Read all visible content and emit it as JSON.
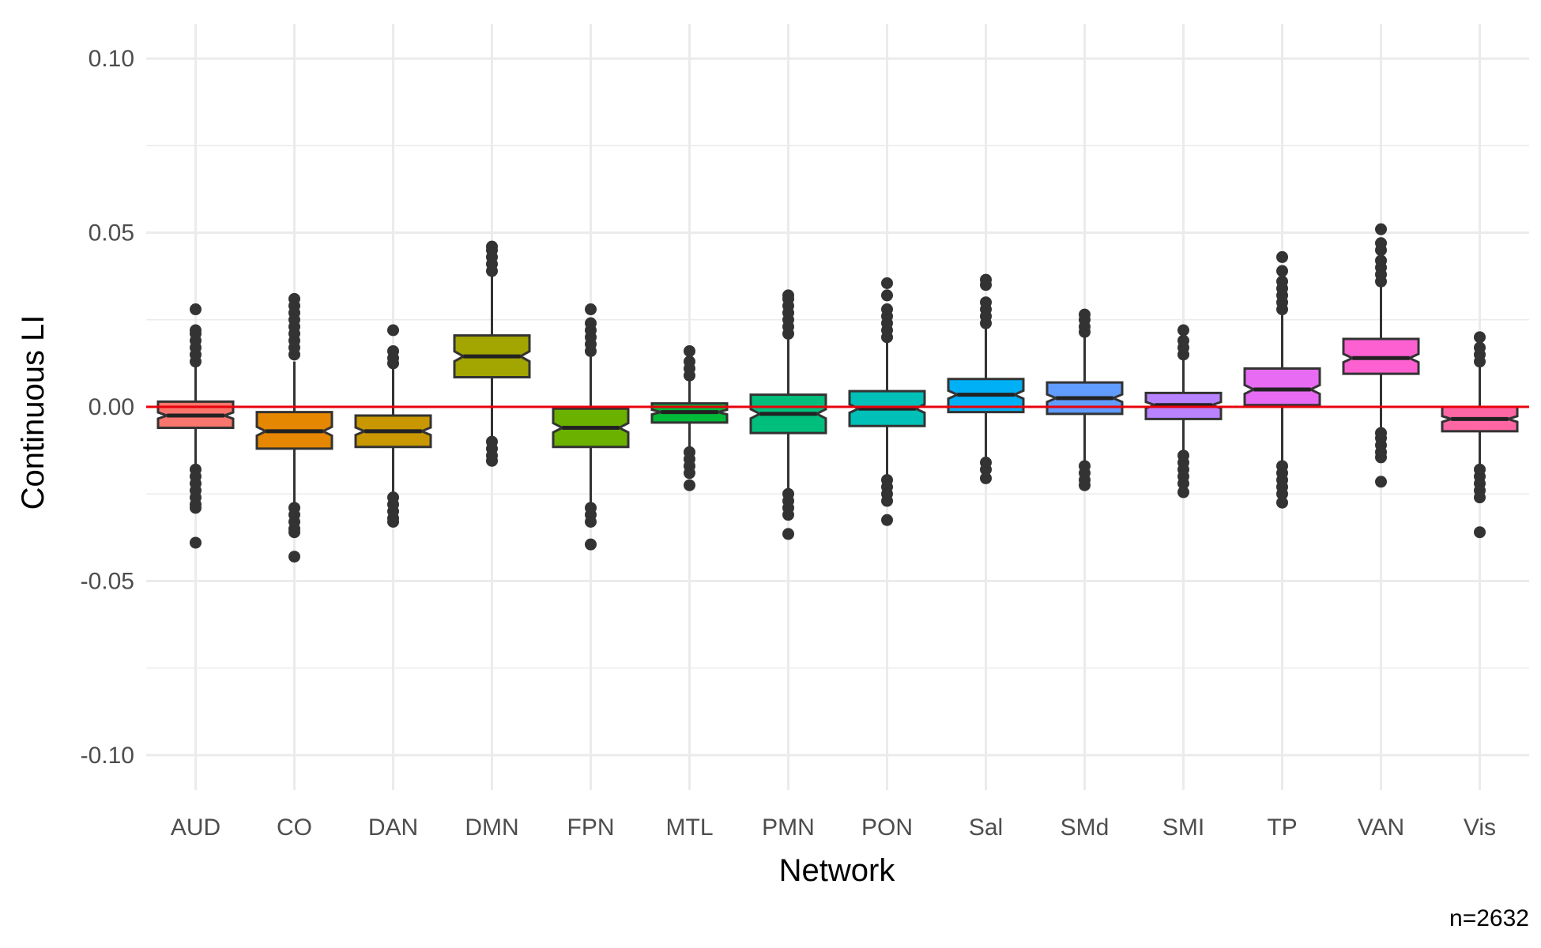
{
  "chart_data": {
    "type": "boxplot",
    "xlabel": "Network",
    "ylabel": "Continuous LI",
    "caption": "n=2632",
    "ylim": [
      -0.11,
      0.11
    ],
    "y_ticks": [
      {
        "value": 0.1,
        "label": "0.10"
      },
      {
        "value": 0.05,
        "label": "0.05"
      },
      {
        "value": 0.0,
        "label": "0.00"
      },
      {
        "value": -0.05,
        "label": "-0.05"
      },
      {
        "value": -0.1,
        "label": "-0.10"
      }
    ],
    "reference_line": {
      "y": 0.0,
      "color": "#e8000b"
    },
    "grid": true,
    "legend": "none",
    "boxes": [
      {
        "category": "AUD",
        "color": "#f8766d",
        "q1": -0.006,
        "median": -0.0025,
        "q3": 0.0015,
        "whisker_low": -0.0165,
        "whisker_high": 0.012,
        "outliers_low": [
          -0.018,
          -0.02,
          -0.022,
          -0.024,
          -0.026,
          -0.028,
          -0.029,
          -0.039
        ],
        "outliers_high": [
          0.013,
          0.015,
          0.017,
          0.019,
          0.021,
          0.022,
          0.028
        ]
      },
      {
        "category": "CO",
        "color": "#e58700",
        "q1": -0.012,
        "median": -0.007,
        "q3": -0.0015,
        "whisker_low": -0.028,
        "whisker_high": 0.013,
        "outliers_low": [
          -0.029,
          -0.031,
          -0.033,
          -0.035,
          -0.036,
          -0.043
        ],
        "outliers_high": [
          0.015,
          0.017,
          0.019,
          0.021,
          0.023,
          0.025,
          0.027,
          0.029,
          0.031
        ]
      },
      {
        "category": "DAN",
        "color": "#c99800",
        "q1": -0.0115,
        "median": -0.007,
        "q3": -0.0025,
        "whisker_low": -0.025,
        "whisker_high": 0.0115,
        "outliers_low": [
          -0.026,
          -0.028,
          -0.03,
          -0.032,
          -0.033
        ],
        "outliers_high": [
          0.0125,
          0.014,
          0.016,
          0.022
        ]
      },
      {
        "category": "DMN",
        "color": "#a3a500",
        "q1": 0.0085,
        "median": 0.0145,
        "q3": 0.0205,
        "whisker_low": -0.009,
        "whisker_high": 0.0375,
        "outliers_low": [
          -0.01,
          -0.012,
          -0.014,
          -0.0155
        ],
        "outliers_high": [
          0.039,
          0.041,
          0.043,
          0.045,
          0.046
        ]
      },
      {
        "category": "FPN",
        "color": "#6bb100",
        "q1": -0.0115,
        "median": -0.006,
        "q3": -0.0005,
        "whisker_low": -0.028,
        "whisker_high": 0.015,
        "outliers_low": [
          -0.029,
          -0.031,
          -0.033,
          -0.0395
        ],
        "outliers_high": [
          0.016,
          0.018,
          0.02,
          0.022,
          0.024,
          0.028
        ]
      },
      {
        "category": "MTL",
        "color": "#00ba38",
        "q1": -0.0045,
        "median": -0.0015,
        "q3": 0.001,
        "whisker_low": -0.0115,
        "whisker_high": 0.0085,
        "outliers_low": [
          -0.013,
          -0.015,
          -0.017,
          -0.019,
          -0.0225
        ],
        "outliers_high": [
          0.009,
          0.011,
          0.013,
          0.016
        ]
      },
      {
        "category": "PMN",
        "color": "#00bf7d",
        "q1": -0.0075,
        "median": -0.002,
        "q3": 0.0035,
        "whisker_low": -0.024,
        "whisker_high": 0.02,
        "outliers_low": [
          -0.025,
          -0.027,
          -0.029,
          -0.031,
          -0.0365
        ],
        "outliers_high": [
          0.021,
          0.023,
          0.025,
          0.027,
          0.029,
          0.031,
          0.032
        ]
      },
      {
        "category": "PON",
        "color": "#00c0b8",
        "q1": -0.0055,
        "median": -0.0005,
        "q3": 0.0045,
        "whisker_low": -0.0195,
        "whisker_high": 0.019,
        "outliers_low": [
          -0.021,
          -0.023,
          -0.025,
          -0.027,
          -0.0325
        ],
        "outliers_high": [
          0.02,
          0.022,
          0.024,
          0.026,
          0.028,
          0.032,
          0.0355
        ]
      },
      {
        "category": "Sal",
        "color": "#00b0f6",
        "q1": -0.0015,
        "median": 0.0035,
        "q3": 0.008,
        "whisker_low": -0.0145,
        "whisker_high": 0.0225,
        "outliers_low": [
          -0.016,
          -0.018,
          -0.0205
        ],
        "outliers_high": [
          0.024,
          0.026,
          0.028,
          0.03,
          0.035,
          0.0365
        ]
      },
      {
        "category": "SMd",
        "color": "#619cff",
        "q1": -0.002,
        "median": 0.0025,
        "q3": 0.007,
        "whisker_low": -0.0155,
        "whisker_high": 0.0205,
        "outliers_low": [
          -0.017,
          -0.019,
          -0.021,
          -0.0225
        ],
        "outliers_high": [
          0.0215,
          0.023,
          0.025,
          0.0265
        ]
      },
      {
        "category": "SMI",
        "color": "#b983ff",
        "q1": -0.0035,
        "median": 0.0005,
        "q3": 0.004,
        "whisker_low": -0.0125,
        "whisker_high": 0.0135,
        "outliers_low": [
          -0.014,
          -0.016,
          -0.018,
          -0.02,
          -0.022,
          -0.0245
        ],
        "outliers_high": [
          0.015,
          0.017,
          0.019,
          0.022
        ]
      },
      {
        "category": "TP",
        "color": "#e76bf3",
        "q1": 0.0005,
        "median": 0.005,
        "q3": 0.011,
        "whisker_low": -0.0155,
        "whisker_high": 0.0265,
        "outliers_low": [
          -0.017,
          -0.019,
          -0.021,
          -0.023,
          -0.025,
          -0.0275
        ],
        "outliers_high": [
          0.028,
          0.03,
          0.032,
          0.034,
          0.036,
          0.039,
          0.043
        ]
      },
      {
        "category": "VAN",
        "color": "#fd61d1",
        "q1": 0.0095,
        "median": 0.014,
        "q3": 0.0195,
        "whisker_low": -0.0065,
        "whisker_high": 0.0345,
        "outliers_low": [
          -0.0075,
          -0.009,
          -0.011,
          -0.013,
          -0.0145,
          -0.0215
        ],
        "outliers_high": [
          0.036,
          0.038,
          0.04,
          0.042,
          0.045,
          0.047,
          0.051
        ]
      },
      {
        "category": "Vis",
        "color": "#ff67a4",
        "q1": -0.007,
        "median": -0.0035,
        "q3": 0.0,
        "whisker_low": -0.0165,
        "whisker_high": 0.0115,
        "outliers_low": [
          -0.018,
          -0.02,
          -0.022,
          -0.024,
          -0.026,
          -0.036
        ],
        "outliers_high": [
          0.013,
          0.015,
          0.017,
          0.02
        ]
      }
    ]
  }
}
